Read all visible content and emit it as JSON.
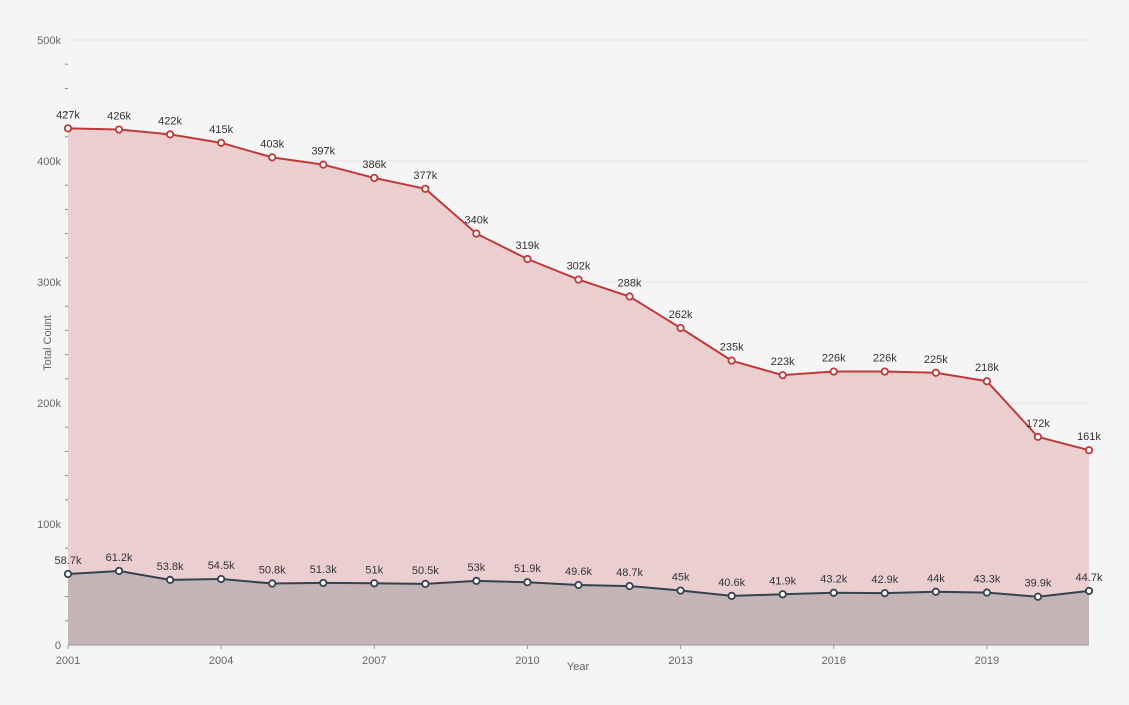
{
  "chart_data": {
    "type": "area",
    "title": "",
    "xlabel": "Year",
    "ylabel": "Total Count",
    "ylim": [
      0,
      500000
    ],
    "yticks": [
      0,
      100000,
      200000,
      300000,
      400000,
      500000
    ],
    "ytick_labels": [
      "0",
      "100k",
      "200k",
      "300k",
      "400k",
      "500k"
    ],
    "xticks": [
      2001,
      2004,
      2007,
      2010,
      2013,
      2016,
      2019
    ],
    "xtick_labels": [
      "2001",
      "2004",
      "2007",
      "2010",
      "2013",
      "2016",
      "2019"
    ],
    "grid": true,
    "x": [
      2001,
      2002,
      2003,
      2004,
      2005,
      2006,
      2007,
      2008,
      2009,
      2010,
      2011,
      2012,
      2013,
      2014,
      2015,
      2016,
      2017,
      2018,
      2019,
      2020,
      2021
    ],
    "series": [
      {
        "name": "series-1",
        "color": "#c0393b",
        "fill": "#ebcfd0",
        "values": [
          427000,
          426000,
          422000,
          415000,
          403000,
          397000,
          386000,
          377000,
          340000,
          319000,
          302000,
          288000,
          262000,
          235000,
          223000,
          226000,
          226000,
          225000,
          218000,
          172000,
          161000
        ],
        "labels": [
          "427k",
          "426k",
          "422k",
          "415k",
          "403k",
          "397k",
          "386k",
          "377k",
          "340k",
          "319k",
          "302k",
          "288k",
          "262k",
          "235k",
          "223k",
          "226k",
          "226k",
          "225k",
          "218k",
          "172k",
          "161k"
        ]
      },
      {
        "name": "series-2",
        "color": "#34424f",
        "fill": "#c5b4b5",
        "values": [
          58700,
          61200,
          53800,
          54500,
          50800,
          51300,
          51000,
          50500,
          53000,
          51900,
          49600,
          48700,
          45000,
          40600,
          41900,
          43200,
          42900,
          44000,
          43300,
          39900,
          44700
        ],
        "labels": [
          "58.7k",
          "61.2k",
          "53.8k",
          "54.5k",
          "50.8k",
          "51.3k",
          "51k",
          "50.5k",
          "53k",
          "51.9k",
          "49.6k",
          "48.7k",
          "45k",
          "40.6k",
          "41.9k",
          "43.2k",
          "42.9k",
          "44k",
          "43.3k",
          "39.9k",
          "44.7k"
        ]
      }
    ]
  }
}
